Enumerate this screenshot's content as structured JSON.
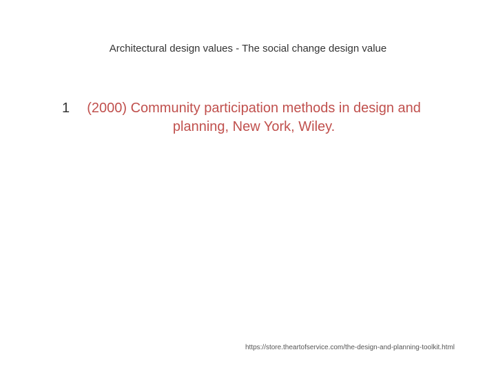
{
  "slide": {
    "title": "Architectural design values - The social change design value",
    "bullet": {
      "number": "1",
      "text": "(2000) Community participation methods in design and planning, New York, Wiley."
    },
    "footer_url": "https://store.theartofservice.com/the-design-and-planning-toolkit.html"
  },
  "style": {
    "background_color": "#ffffff",
    "title_color": "#333333",
    "title_fontsize": 15,
    "body_fontsize": 20,
    "bullet_number_color": "#333333",
    "bullet_text_color": "#c0504d",
    "footer_color": "#555555",
    "footer_fontsize": 10,
    "font_family": "Arial"
  }
}
